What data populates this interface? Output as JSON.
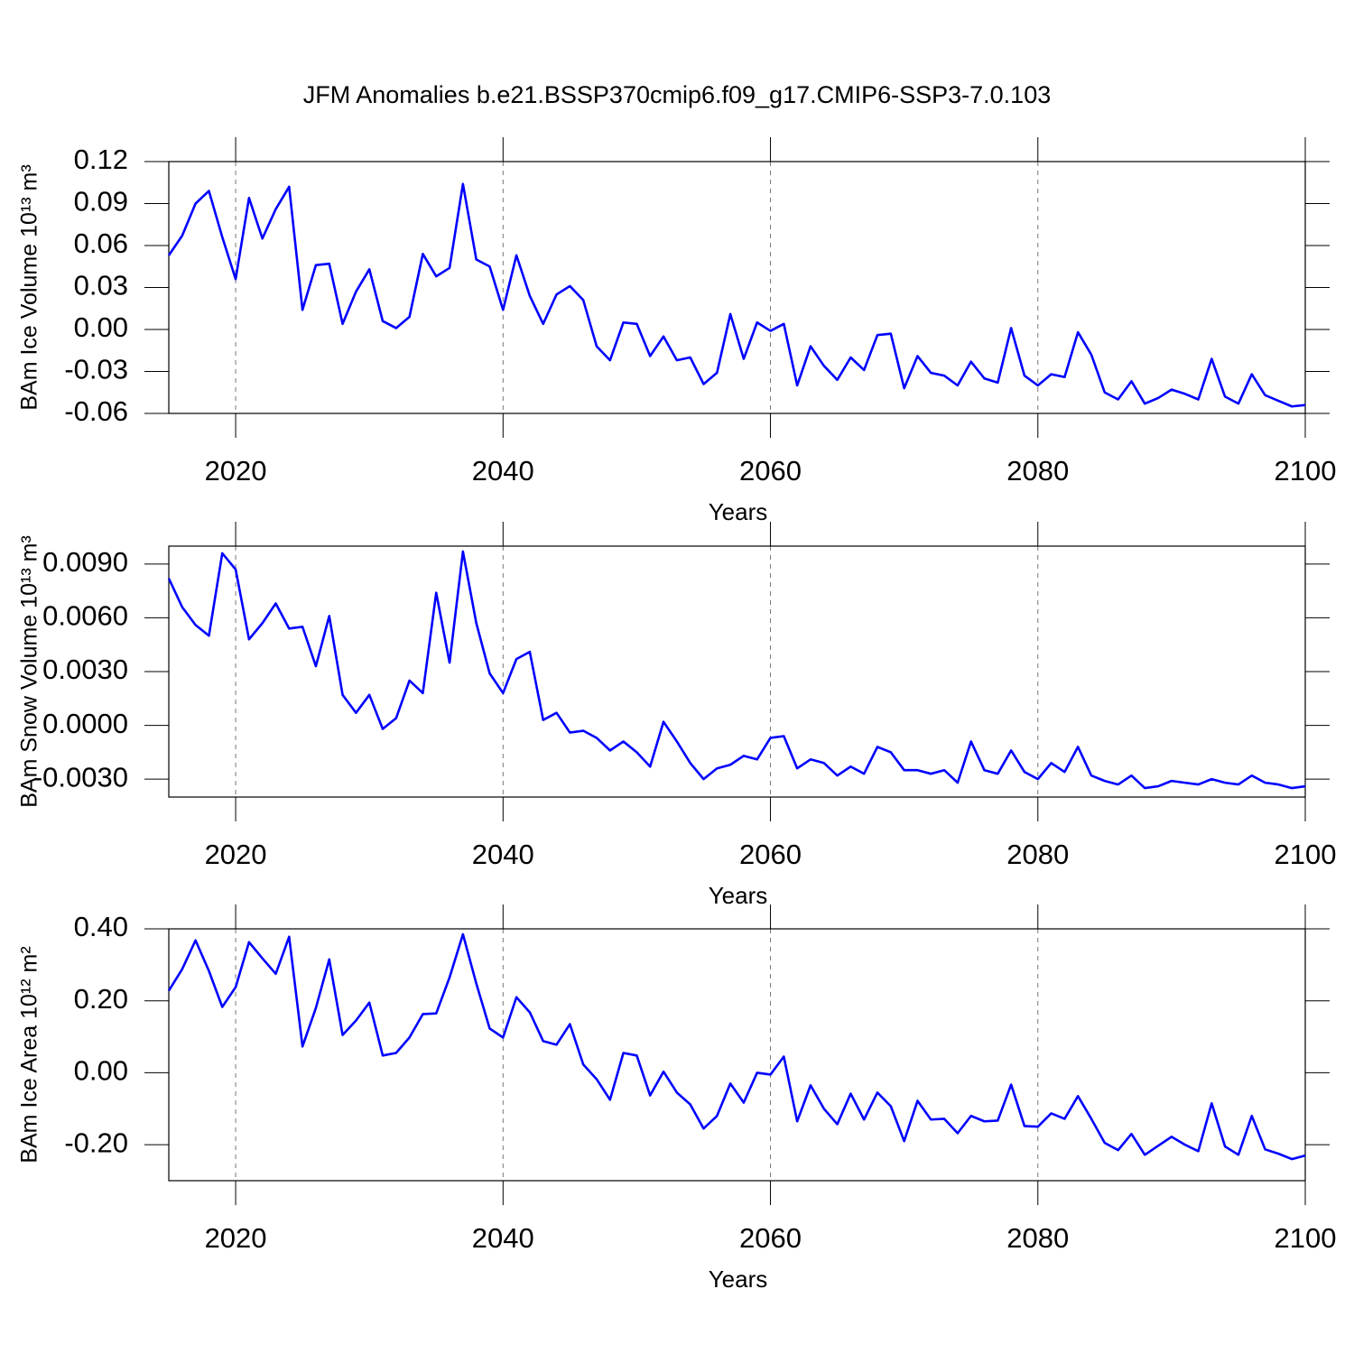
{
  "chart_data": [
    {
      "type": "line",
      "title": "JFM Anomalies b.e21.BSSP370cmip6.f09_g17.CMIP6-SSP3-7.0.103",
      "ylabel": "BAm Ice Volume 10¹³ m³",
      "xlabel": "Years",
      "color": "#0000ff",
      "grid": "x",
      "xlim": [
        2015,
        2100
      ],
      "xticks": [
        2020,
        2040,
        2060,
        2080,
        2100
      ],
      "ylim": [
        -0.06,
        0.12
      ],
      "yticks": [
        -0.06,
        -0.03,
        {
          "value": 0,
          "label": "0.00"
        },
        0.03,
        0.06,
        0.09,
        0.12
      ],
      "x": [
        2015,
        2016,
        2017,
        2018,
        2019,
        2020,
        2021,
        2022,
        2023,
        2024,
        2025,
        2026,
        2027,
        2028,
        2029,
        2030,
        2031,
        2032,
        2033,
        2034,
        2035,
        2036,
        2037,
        2038,
        2039,
        2040,
        2041,
        2042,
        2043,
        2044,
        2045,
        2046,
        2047,
        2048,
        2049,
        2050,
        2051,
        2052,
        2053,
        2054,
        2055,
        2056,
        2057,
        2058,
        2059,
        2060,
        2061,
        2062,
        2063,
        2064,
        2065,
        2066,
        2067,
        2068,
        2069,
        2070,
        2071,
        2072,
        2073,
        2074,
        2075,
        2076,
        2077,
        2078,
        2079,
        2080,
        2081,
        2082,
        2083,
        2084,
        2085,
        2086,
        2087,
        2088,
        2089,
        2090,
        2091,
        2092,
        2093,
        2094,
        2095,
        2096,
        2097,
        2098,
        2099,
        2100
      ],
      "values": [
        0.053,
        0.067,
        0.09,
        0.099,
        0.066,
        0.036,
        0.094,
        0.065,
        0.086,
        0.102,
        0.014,
        0.046,
        0.047,
        0.004,
        0.027,
        0.043,
        0.006,
        0.001,
        0.009,
        0.054,
        0.038,
        0.044,
        0.104,
        0.05,
        0.045,
        0.014,
        0.053,
        0.024,
        0.004,
        0.025,
        0.031,
        0.021,
        -0.012,
        -0.022,
        0.005,
        0.004,
        -0.019,
        -0.005,
        -0.022,
        -0.02,
        -0.039,
        -0.031,
        0.011,
        -0.021,
        0.005,
        -0.001,
        0.004,
        -0.04,
        -0.012,
        -0.026,
        -0.036,
        -0.02,
        -0.029,
        -0.004,
        -0.003,
        -0.042,
        -0.019,
        -0.031,
        -0.033,
        -0.04,
        -0.023,
        -0.035,
        -0.038,
        0.001,
        -0.033,
        -0.04,
        -0.032,
        -0.034,
        -0.002,
        -0.018,
        -0.045,
        -0.05,
        -0.037,
        -0.053,
        -0.049,
        -0.043,
        -0.046,
        -0.05,
        -0.021,
        -0.048,
        -0.053,
        -0.032,
        -0.047,
        -0.051,
        -0.055,
        -0.054
      ]
    },
    {
      "type": "line",
      "ylabel": "BAm Snow Volume 10¹³ m³",
      "xlabel": "Years",
      "color": "#0000ff",
      "grid": "x",
      "xlim": [
        2015,
        2100
      ],
      "xticks": [
        2020,
        2040,
        2060,
        2080,
        2100
      ],
      "ylim": [
        -0.004,
        0.01
      ],
      "yticks": [
        {
          "value": -0.003,
          "label": "-0.0030"
        },
        {
          "value": 0,
          "label": "0.0000"
        },
        {
          "value": 0.003,
          "label": "0.0030"
        },
        {
          "value": 0.006,
          "label": "0.0060"
        },
        {
          "value": 0.009,
          "label": "0.0090"
        }
      ],
      "x": [
        2015,
        2016,
        2017,
        2018,
        2019,
        2020,
        2021,
        2022,
        2023,
        2024,
        2025,
        2026,
        2027,
        2028,
        2029,
        2030,
        2031,
        2032,
        2033,
        2034,
        2035,
        2036,
        2037,
        2038,
        2039,
        2040,
        2041,
        2042,
        2043,
        2044,
        2045,
        2046,
        2047,
        2048,
        2049,
        2050,
        2051,
        2052,
        2053,
        2054,
        2055,
        2056,
        2057,
        2058,
        2059,
        2060,
        2061,
        2062,
        2063,
        2064,
        2065,
        2066,
        2067,
        2068,
        2069,
        2070,
        2071,
        2072,
        2073,
        2074,
        2075,
        2076,
        2077,
        2078,
        2079,
        2080,
        2081,
        2082,
        2083,
        2084,
        2085,
        2086,
        2087,
        2088,
        2089,
        2090,
        2091,
        2092,
        2093,
        2094,
        2095,
        2096,
        2097,
        2098,
        2099,
        2100
      ],
      "values": [
        0.0082,
        0.0066,
        0.0056,
        0.005,
        0.0096,
        0.0087,
        0.0048,
        0.0057,
        0.0068,
        0.0054,
        0.0055,
        0.0033,
        0.0061,
        0.0017,
        0.0007,
        0.0017,
        -0.0002,
        0.0004,
        0.0025,
        0.0018,
        0.0074,
        0.0035,
        0.0097,
        0.0057,
        0.0029,
        0.0018,
        0.0037,
        0.0041,
        0.0003,
        0.0007,
        -0.0004,
        -0.0003,
        -0.0007,
        -0.0014,
        -0.0009,
        -0.0015,
        -0.0023,
        0.0002,
        -0.0009,
        -0.0021,
        -0.003,
        -0.0024,
        -0.0022,
        -0.0017,
        -0.0019,
        -0.0007,
        -0.0006,
        -0.0024,
        -0.0019,
        -0.0021,
        -0.0028,
        -0.0023,
        -0.0027,
        -0.0012,
        -0.0015,
        -0.0025,
        -0.0025,
        -0.0027,
        -0.0025,
        -0.0032,
        -0.0009,
        -0.0025,
        -0.0027,
        -0.0014,
        -0.0026,
        -0.003,
        -0.0021,
        -0.0026,
        -0.0012,
        -0.0028,
        -0.0031,
        -0.0033,
        -0.0028,
        -0.0035,
        -0.0034,
        -0.0031,
        -0.0032,
        -0.0033,
        -0.003,
        -0.0032,
        -0.0033,
        -0.0028,
        -0.0032,
        -0.0033,
        -0.0035,
        -0.0034
      ]
    },
    {
      "type": "line",
      "ylabel": "BAm Ice Area 10¹² m²",
      "xlabel": "Years",
      "color": "#0000ff",
      "grid": "x",
      "xlim": [
        2015,
        2100
      ],
      "xticks": [
        2020,
        2040,
        2060,
        2080,
        2100
      ],
      "ylim": [
        -0.3,
        0.4
      ],
      "yticks": [
        {
          "value": -0.2,
          "label": "-0.20"
        },
        {
          "value": 0,
          "label": "0.00"
        },
        {
          "value": 0.2,
          "label": "0.20"
        },
        {
          "value": 0.4,
          "label": "0.40"
        }
      ],
      "x": [
        2015,
        2016,
        2017,
        2018,
        2019,
        2020,
        2021,
        2022,
        2023,
        2024,
        2025,
        2026,
        2027,
        2028,
        2029,
        2030,
        2031,
        2032,
        2033,
        2034,
        2035,
        2036,
        2037,
        2038,
        2039,
        2040,
        2041,
        2042,
        2043,
        2044,
        2045,
        2046,
        2047,
        2048,
        2049,
        2050,
        2051,
        2052,
        2053,
        2054,
        2055,
        2056,
        2057,
        2058,
        2059,
        2060,
        2061,
        2062,
        2063,
        2064,
        2065,
        2066,
        2067,
        2068,
        2069,
        2070,
        2071,
        2072,
        2073,
        2074,
        2075,
        2076,
        2077,
        2078,
        2079,
        2080,
        2081,
        2082,
        2083,
        2084,
        2085,
        2086,
        2087,
        2088,
        2089,
        2090,
        2091,
        2092,
        2093,
        2094,
        2095,
        2096,
        2097,
        2098,
        2099,
        2100
      ],
      "values": [
        0.228,
        0.288,
        0.368,
        0.283,
        0.183,
        0.238,
        0.363,
        0.318,
        0.275,
        0.378,
        0.073,
        0.18,
        0.315,
        0.105,
        0.145,
        0.195,
        0.048,
        0.055,
        0.098,
        0.163,
        0.165,
        0.265,
        0.385,
        0.248,
        0.123,
        0.098,
        0.21,
        0.168,
        0.088,
        0.078,
        0.135,
        0.023,
        -0.018,
        -0.075,
        0.055,
        0.048,
        -0.063,
        0.003,
        -0.055,
        -0.088,
        -0.155,
        -0.12,
        -0.03,
        -0.083,
        0.0,
        -0.005,
        0.045,
        -0.135,
        -0.035,
        -0.1,
        -0.143,
        -0.058,
        -0.13,
        -0.055,
        -0.093,
        -0.19,
        -0.078,
        -0.13,
        -0.128,
        -0.168,
        -0.12,
        -0.135,
        -0.133,
        -0.033,
        -0.148,
        -0.15,
        -0.113,
        -0.128,
        -0.065,
        -0.128,
        -0.195,
        -0.215,
        -0.17,
        -0.228,
        -0.203,
        -0.178,
        -0.2,
        -0.218,
        -0.085,
        -0.205,
        -0.228,
        -0.12,
        -0.213,
        -0.225,
        -0.24,
        -0.23
      ]
    }
  ]
}
